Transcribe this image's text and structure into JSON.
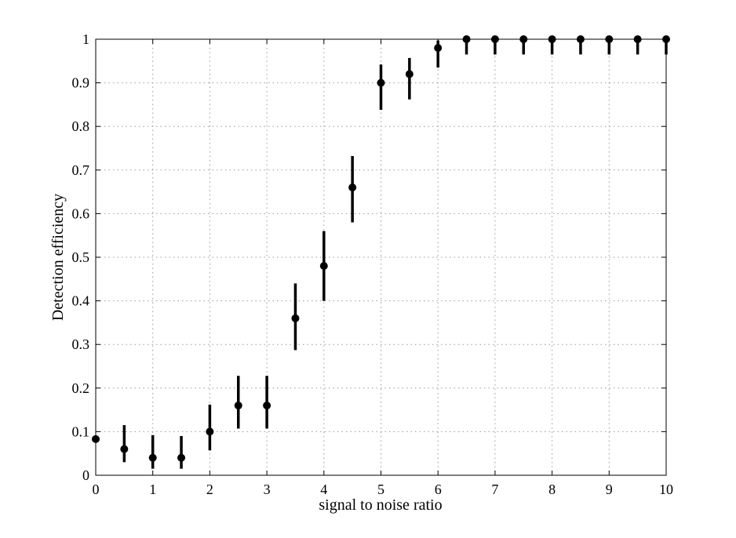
{
  "chart_data": {
    "type": "scatter",
    "title": "",
    "xlabel": "signal to noise ratio",
    "ylabel": "Detection efficiency",
    "xlim": [
      0,
      10
    ],
    "ylim": [
      0,
      1
    ],
    "grid": true,
    "x_ticks": [
      "0",
      "1",
      "2",
      "3",
      "4",
      "5",
      "6",
      "7",
      "8",
      "9",
      "10"
    ],
    "y_ticks": [
      "0",
      "0.1",
      "0.2",
      "0.3",
      "0.4",
      "0.5",
      "0.6",
      "0.7",
      "0.8",
      "0.9",
      "1"
    ],
    "series": [
      {
        "points": [
          {
            "x": 0.0,
            "y": 0.083,
            "err_low": 0.083,
            "err_high": 0.083
          },
          {
            "x": 0.5,
            "y": 0.06,
            "err_low": 0.03,
            "err_high": 0.115
          },
          {
            "x": 1.0,
            "y": 0.04,
            "err_low": 0.015,
            "err_high": 0.092
          },
          {
            "x": 1.5,
            "y": 0.04,
            "err_low": 0.015,
            "err_high": 0.09
          },
          {
            "x": 2.0,
            "y": 0.1,
            "err_low": 0.057,
            "err_high": 0.162
          },
          {
            "x": 2.5,
            "y": 0.16,
            "err_low": 0.107,
            "err_high": 0.228
          },
          {
            "x": 3.0,
            "y": 0.16,
            "err_low": 0.107,
            "err_high": 0.228
          },
          {
            "x": 3.5,
            "y": 0.36,
            "err_low": 0.287,
            "err_high": 0.44
          },
          {
            "x": 4.0,
            "y": 0.48,
            "err_low": 0.4,
            "err_high": 0.56
          },
          {
            "x": 4.5,
            "y": 0.66,
            "err_low": 0.58,
            "err_high": 0.732
          },
          {
            "x": 5.0,
            "y": 0.9,
            "err_low": 0.838,
            "err_high": 0.942
          },
          {
            "x": 5.5,
            "y": 0.92,
            "err_low": 0.862,
            "err_high": 0.957
          },
          {
            "x": 6.0,
            "y": 0.98,
            "err_low": 0.935,
            "err_high": 0.997
          },
          {
            "x": 6.5,
            "y": 1.0,
            "err_low": 0.965,
            "err_high": 1.0
          },
          {
            "x": 7.0,
            "y": 1.0,
            "err_low": 0.965,
            "err_high": 1.0
          },
          {
            "x": 7.5,
            "y": 1.0,
            "err_low": 0.965,
            "err_high": 1.0
          },
          {
            "x": 8.0,
            "y": 1.0,
            "err_low": 0.965,
            "err_high": 1.0
          },
          {
            "x": 8.5,
            "y": 1.0,
            "err_low": 0.965,
            "err_high": 1.0
          },
          {
            "x": 9.0,
            "y": 1.0,
            "err_low": 0.965,
            "err_high": 1.0
          },
          {
            "x": 9.5,
            "y": 1.0,
            "err_low": 0.965,
            "err_high": 1.0
          },
          {
            "x": 10.0,
            "y": 1.0,
            "err_low": 0.965,
            "err_high": 1.0
          }
        ]
      }
    ],
    "colors": {
      "marker": "#000000",
      "axis": "#000000",
      "grid": "#9a9a9a"
    }
  }
}
